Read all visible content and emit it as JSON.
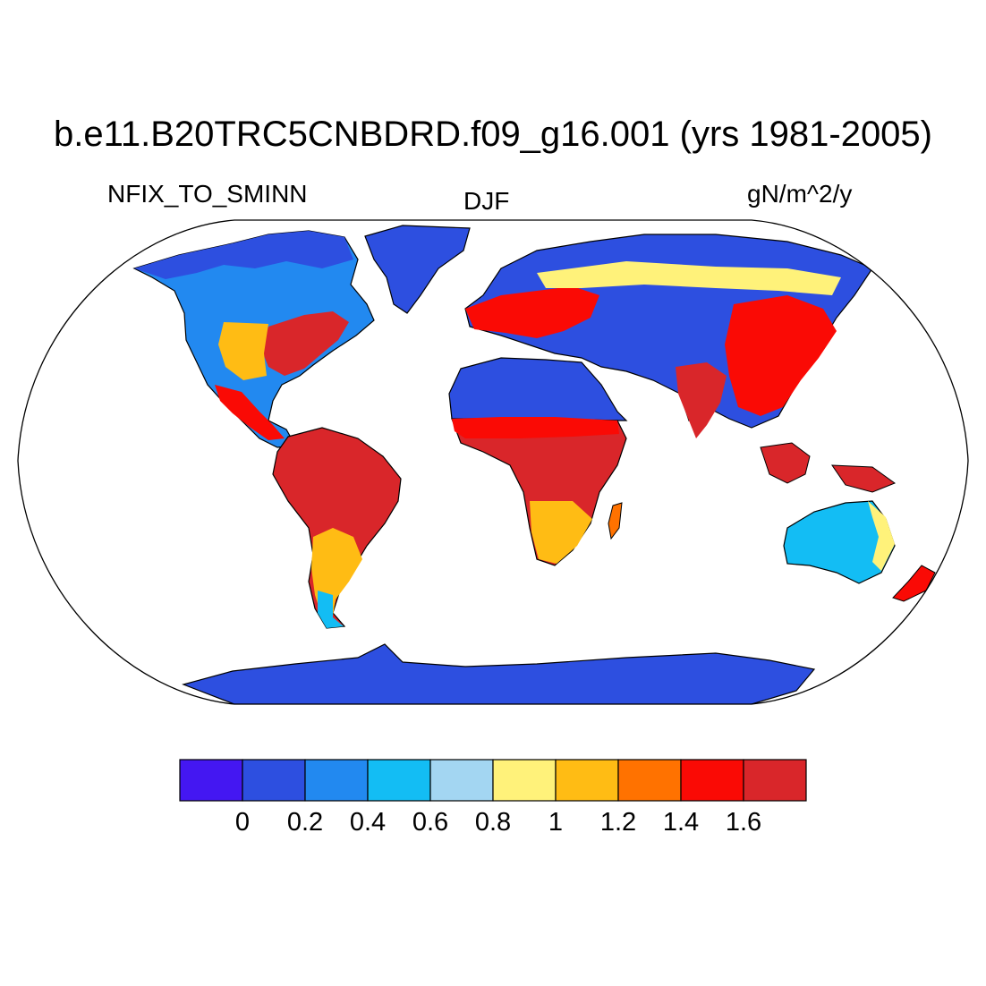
{
  "title": "b.e11.B20TRC5CNBDRD.f09_g16.001 (yrs 1981-2005)",
  "variable": "NFIX_TO_SMINN",
  "season": "DJF",
  "units": "gN/m^2/y",
  "colorbar": {
    "colors": [
      "#4417f2",
      "#2d4fe0",
      "#2289f0",
      "#13bdf4",
      "#a3d6f2",
      "#fff27a",
      "#ffbc14",
      "#ff7200",
      "#fa0a05",
      "#d9262a"
    ],
    "tick_labels": [
      "0",
      "0.2",
      "0.4",
      "0.6",
      "0.8",
      "1",
      "1.2",
      "1.4",
      "1.6"
    ]
  },
  "chart_data": {
    "type": "heatmap",
    "projection": "Robinson",
    "title": "b.e11.B20TRC5CNBDRD.f09_g16.001 (yrs 1981-2005)",
    "variable": "NFIX_TO_SMINN",
    "season": "DJF",
    "units": "gN/m^2/y",
    "color_levels": [
      0,
      0.2,
      0.4,
      0.6,
      0.8,
      1,
      1.2,
      1.4,
      1.6
    ],
    "regions": [
      {
        "name": "Antarctica",
        "value_class": "0-0.2"
      },
      {
        "name": "Greenland",
        "value_class": "0-0.2"
      },
      {
        "name": "Sahara / Arabia",
        "value_class": "0-0.2"
      },
      {
        "name": "Central Asia / Tibet",
        "value_class": "0-0.2"
      },
      {
        "name": "Siberia",
        "value_class": "0-0.2"
      },
      {
        "name": "Northern Canada",
        "value_class": "0.2-0.6"
      },
      {
        "name": "Eastern United States",
        "value_class": ">1.6"
      },
      {
        "name": "Central America",
        "value_class": "1.4-1.6"
      },
      {
        "name": "Amazon basin",
        "value_class": ">1.6"
      },
      {
        "name": "Central Africa",
        "value_class": ">1.6"
      },
      {
        "name": "Sahel",
        "value_class": "1.4-1.6"
      },
      {
        "name": "Southern Africa",
        "value_class": "1.0-1.4"
      },
      {
        "name": "Europe",
        "value_class": "1.0-1.4"
      },
      {
        "name": "India / Southeast Asia",
        "value_class": ">1.6"
      },
      {
        "name": "Indonesia / New Guinea",
        "value_class": ">1.6"
      },
      {
        "name": "Australia interior",
        "value_class": "0.4-0.8"
      },
      {
        "name": "New Zealand",
        "value_class": "1.4-1.6"
      },
      {
        "name": "Patagonia",
        "value_class": "0.4-0.8"
      }
    ]
  }
}
